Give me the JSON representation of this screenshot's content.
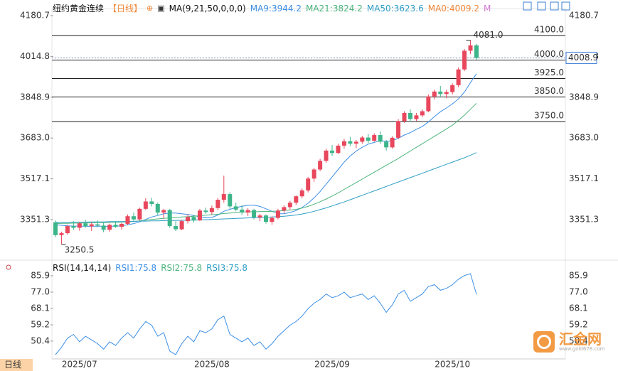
{
  "chart_data": [
    {
      "type": "candlestick",
      "title": "纽约黄金连续",
      "period": "【日线】",
      "indicator": "MA(9,21,50,0,0,0)",
      "categories": [
        null,
        null,
        null,
        null,
        "2025/07",
        null,
        null,
        null,
        null,
        null,
        null,
        null,
        null,
        null,
        null,
        null,
        null,
        null,
        null,
        null,
        null,
        null,
        null,
        null,
        null,
        null,
        "2025/08",
        null,
        null,
        null,
        null,
        null,
        null,
        null,
        null,
        null,
        null,
        null,
        null,
        null,
        null,
        null,
        null,
        null,
        null,
        null,
        "2025/09",
        null,
        null,
        null,
        null,
        null,
        null,
        null,
        null,
        null,
        null,
        null,
        null,
        null,
        null,
        null,
        null,
        null,
        null,
        null,
        "2025/10",
        null,
        null,
        null,
        null
      ],
      "open": [
        3340,
        3288,
        3296,
        3325,
        3318,
        3336,
        3324,
        3332,
        3327,
        3310,
        3330,
        3322,
        3334,
        3365,
        3352,
        3395,
        3425,
        3415,
        3380,
        3390,
        3325,
        3312,
        3345,
        3362,
        3348,
        3388,
        3382,
        3398,
        3432,
        3455,
        3405,
        3392,
        3380,
        3390,
        3360,
        3368,
        3342,
        3358,
        3388,
        3402,
        3420,
        3446,
        3470,
        3518,
        3555,
        3590,
        3632,
        3622,
        3652,
        3670,
        3660,
        3668,
        3685,
        3672,
        3695,
        3668,
        3645,
        3684,
        3752,
        3785,
        3760,
        3775,
        3792,
        3852,
        3872,
        3862,
        3870,
        3898,
        3962,
        4038,
        4060
      ],
      "high": [
        3348,
        3302,
        3330,
        3345,
        3342,
        3350,
        3340,
        3348,
        3342,
        3335,
        3345,
        3338,
        3372,
        3380,
        3400,
        3438,
        3440,
        3420,
        3395,
        3395,
        3345,
        3350,
        3372,
        3370,
        3395,
        3400,
        3408,
        3440,
        3530,
        3462,
        3420,
        3410,
        3398,
        3395,
        3375,
        3372,
        3365,
        3395,
        3410,
        3428,
        3450,
        3478,
        3525,
        3562,
        3598,
        3640,
        3655,
        3660,
        3680,
        3688,
        3675,
        3692,
        3700,
        3702,
        3710,
        3675,
        3690,
        3760,
        3792,
        3800,
        3785,
        3800,
        3860,
        3880,
        3895,
        3880,
        3905,
        3970,
        4045,
        4081.0,
        4065
      ],
      "low": [
        3280,
        3250.5,
        3290,
        3310,
        3306,
        3318,
        3305,
        3320,
        3300,
        3302,
        3318,
        3310,
        3328,
        3345,
        3348,
        3390,
        3405,
        3370,
        3355,
        3318,
        3305,
        3308,
        3335,
        3340,
        3345,
        3375,
        3372,
        3390,
        3420,
        3395,
        3385,
        3370,
        3366,
        3352,
        3345,
        3335,
        3330,
        3352,
        3378,
        3392,
        3410,
        3438,
        3462,
        3505,
        3548,
        3582,
        3610,
        3618,
        3640,
        3650,
        3642,
        3660,
        3662,
        3668,
        3660,
        3632,
        3640,
        3678,
        3745,
        3748,
        3752,
        3768,
        3788,
        3840,
        3852,
        3845,
        3860,
        3890,
        3955,
        4025,
        4002
      ],
      "close": [
        3288,
        3296,
        3325,
        3318,
        3336,
        3324,
        3332,
        3327,
        3310,
        3330,
        3322,
        3334,
        3365,
        3352,
        3395,
        3425,
        3415,
        3380,
        3390,
        3325,
        3312,
        3345,
        3362,
        3348,
        3388,
        3382,
        3398,
        3432,
        3455,
        3405,
        3392,
        3380,
        3390,
        3360,
        3368,
        3342,
        3358,
        3388,
        3402,
        3420,
        3446,
        3470,
        3518,
        3555,
        3590,
        3632,
        3622,
        3652,
        3670,
        3660,
        3668,
        3685,
        3672,
        3695,
        3668,
        3645,
        3684,
        3752,
        3785,
        3760,
        3775,
        3792,
        3852,
        3872,
        3862,
        3870,
        3898,
        3962,
        4038,
        4060,
        4008.9
      ],
      "up_color": "#e8475c",
      "down_color": "#3cb58a",
      "series": [
        {
          "name": "MA9:3944.2",
          "color": "#3d8fe6",
          "values": [
            3330,
            3328,
            3326,
            3325,
            3325,
            3324,
            3324,
            3325,
            3324,
            3324,
            3325,
            3326,
            3330,
            3335,
            3342,
            3352,
            3362,
            3368,
            3375,
            3378,
            3378,
            3375,
            3372,
            3368,
            3362,
            3358,
            3360,
            3370,
            3385,
            3393,
            3400,
            3405,
            3410,
            3410,
            3405,
            3395,
            3385,
            3375,
            3375,
            3380,
            3388,
            3400,
            3418,
            3440,
            3465,
            3495,
            3525,
            3555,
            3585,
            3610,
            3630,
            3645,
            3658,
            3665,
            3672,
            3670,
            3672,
            3682,
            3695,
            3705,
            3718,
            3730,
            3748,
            3770,
            3790,
            3805,
            3822,
            3842,
            3870,
            3908,
            3944.2
          ]
        },
        {
          "name": "MA21:3824.2",
          "color": "#4cb37c",
          "values": [
            3335,
            3336,
            3336,
            3337,
            3337,
            3338,
            3338,
            3339,
            3339,
            3340,
            3340,
            3341,
            3342,
            3344,
            3346,
            3349,
            3352,
            3354,
            3356,
            3358,
            3360,
            3362,
            3363,
            3365,
            3367,
            3369,
            3371,
            3373,
            3376,
            3378,
            3380,
            3382,
            3383,
            3383,
            3384,
            3384,
            3385,
            3386,
            3388,
            3390,
            3393,
            3398,
            3405,
            3414,
            3424,
            3435,
            3447,
            3460,
            3474,
            3488,
            3502,
            3516,
            3530,
            3544,
            3558,
            3572,
            3586,
            3600,
            3615,
            3630,
            3645,
            3660,
            3675,
            3690,
            3705,
            3720,
            3735,
            3755,
            3776,
            3800,
            3824.2
          ]
        },
        {
          "name": "MA50:3623.6",
          "color": "#2f9fc4",
          "values": [
            3340,
            3340,
            3340,
            3341,
            3341,
            3341,
            3342,
            3342,
            3342,
            3343,
            3343,
            3343,
            3344,
            3344,
            3345,
            3345,
            3346,
            3346,
            3347,
            3347,
            3348,
            3348,
            3349,
            3349,
            3350,
            3351,
            3352,
            3353,
            3354,
            3355,
            3356,
            3357,
            3358,
            3359,
            3360,
            3361,
            3362,
            3363,
            3365,
            3367,
            3370,
            3374,
            3379,
            3385,
            3392,
            3399,
            3407,
            3415,
            3423,
            3432,
            3441,
            3450,
            3459,
            3468,
            3477,
            3486,
            3495,
            3504,
            3513,
            3522,
            3531,
            3540,
            3549,
            3558,
            3567,
            3576,
            3585,
            3594,
            3603,
            3613,
            3623.6
          ]
        }
      ],
      "legend_extra": [
        {
          "text": "MA0:4009.2",
          "color": "#f0883a"
        },
        {
          "text": "M",
          "color": "#d57ad6"
        }
      ],
      "ylim": [
        3198,
        4209.6
      ],
      "yticks": [
        3351.3,
        3517.1,
        {
          "value": 3683.0,
          "label": "3683.0"
        },
        3848.9,
        4014.8,
        4180.7
      ],
      "levels": [
        {
          "value": 4100,
          "label": "4100.0"
        },
        {
          "value": 4000,
          "label": "4000.0"
        },
        {
          "value": 3925,
          "label": "3925.0"
        },
        {
          "value": 3850,
          "label": "3850.0"
        },
        {
          "value": 3750,
          "label": "3750.0"
        }
      ],
      "last": {
        "value": 4008.9,
        "label": "4008.9"
      },
      "high_label": "4081.0",
      "low_label": "3250.5"
    },
    {
      "type": "line",
      "title": "RSI(14,14,14)",
      "color": "#3d8fe6",
      "values": [
        43,
        47,
        52,
        54,
        50,
        53,
        51,
        49,
        46,
        50,
        48,
        52,
        55,
        52,
        57,
        61,
        59,
        53,
        55,
        45,
        43,
        49,
        53,
        50,
        56,
        55,
        57,
        62,
        64,
        54,
        52,
        50,
        52,
        48,
        50,
        46,
        49,
        53,
        56,
        59,
        61,
        64,
        68,
        71,
        73,
        76,
        74,
        75,
        77,
        74,
        75,
        76,
        73,
        75,
        71,
        66,
        70,
        76,
        78,
        72,
        74,
        76,
        80,
        81,
        78,
        79,
        81,
        84,
        86,
        87,
        75.8
      ],
      "legend": [
        {
          "text": "RSI1:75.8",
          "color": "#3d8fe6"
        },
        {
          "text": "RSI2:75.8",
          "color": "#4cb37c"
        },
        {
          "text": "RSI3:75.8",
          "color": "#2f9fc4"
        }
      ],
      "ylim": [
        40.7,
        90.9
      ],
      "yticks": [
        85.9,
        {
          "value": 77,
          "label": "77.0"
        },
        68.1,
        59.2,
        50.4
      ]
    }
  ],
  "button": "日线",
  "watermark": {
    "name": "汇金网",
    "url": "www.gold678.com"
  }
}
